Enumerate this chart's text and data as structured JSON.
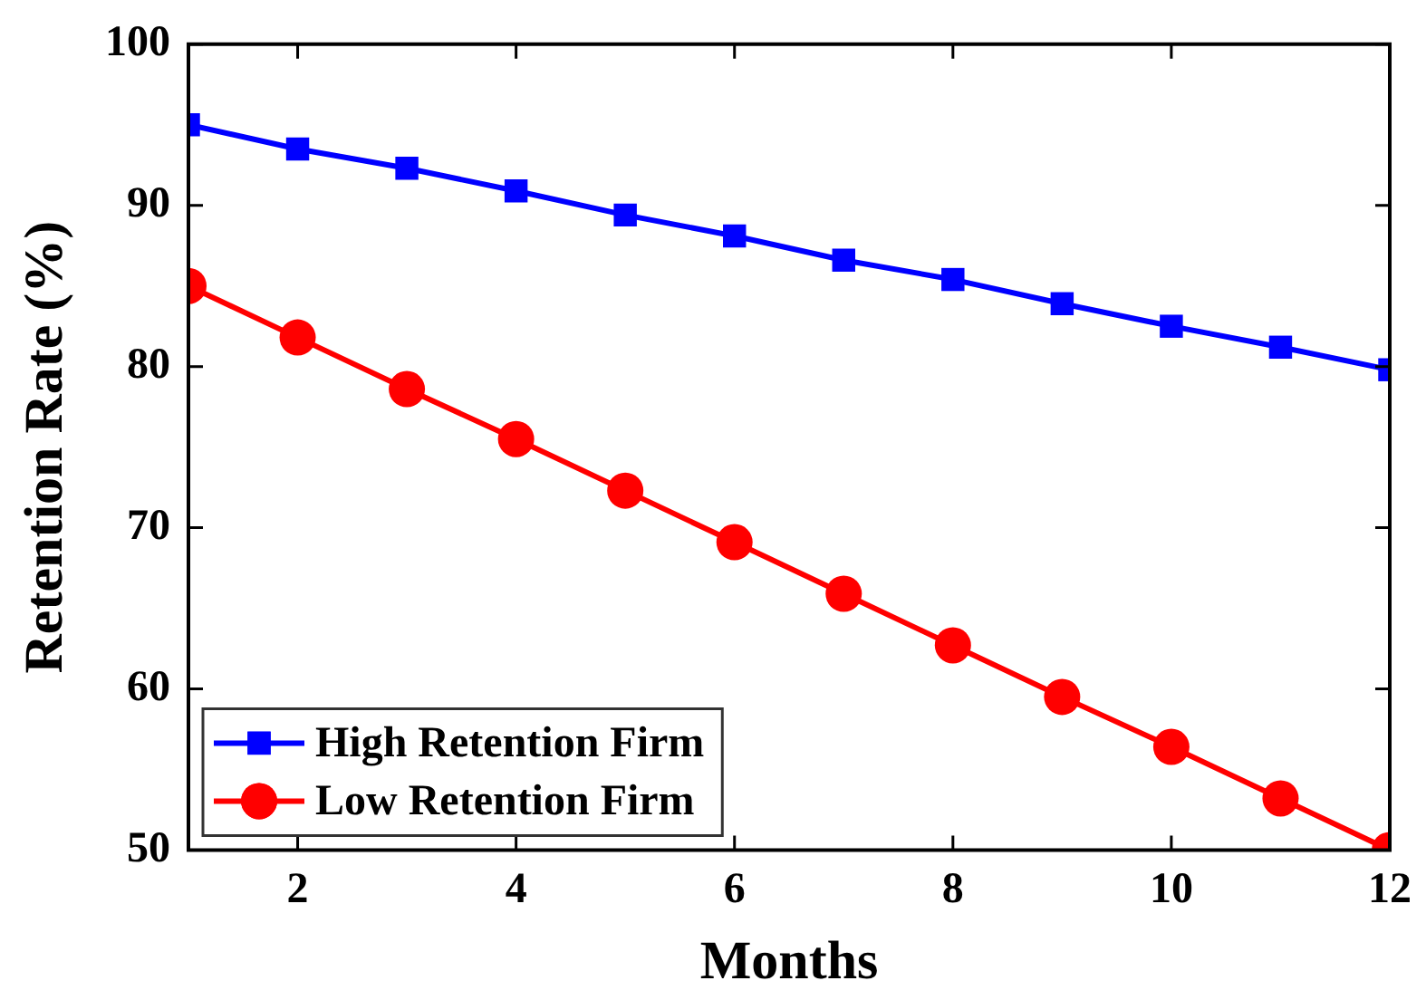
{
  "chart_data": {
    "type": "line",
    "xlabel": "Months",
    "ylabel": "Retention Rate (%)",
    "x": [
      1,
      2,
      3,
      4,
      5,
      6,
      7,
      8,
      9,
      10,
      11,
      12
    ],
    "series": [
      {
        "name": "High Retention Firm",
        "color": "#0000ff",
        "marker": "square",
        "values": [
          95.0,
          93.5,
          92.3,
          90.9,
          89.4,
          88.1,
          86.6,
          85.4,
          83.9,
          82.5,
          81.2,
          79.8
        ]
      },
      {
        "name": "Low Retention Firm",
        "color": "#ff0000",
        "marker": "circle",
        "values": [
          85.0,
          81.8,
          78.6,
          75.5,
          72.3,
          69.1,
          65.9,
          62.7,
          59.5,
          56.4,
          53.2,
          50.0
        ]
      }
    ],
    "xlim": [
      1,
      12
    ],
    "xticks": [
      2,
      4,
      6,
      8,
      10,
      12
    ],
    "ylim": [
      50,
      100
    ],
    "yticks": [
      50,
      60,
      70,
      80,
      90,
      100
    ],
    "grid": false,
    "legend": "bottom left",
    "line_style": "solid"
  }
}
